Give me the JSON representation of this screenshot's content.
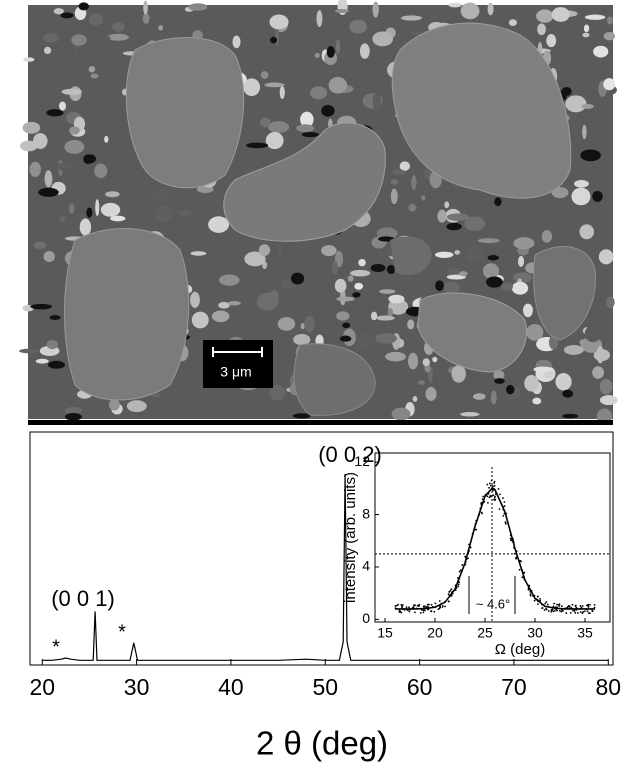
{
  "image": {
    "scale_bar_label": "3 μm"
  },
  "chart_data": [
    {
      "type": "line",
      "xlabel": "2 θ (deg)",
      "x": [
        20,
        21,
        22,
        22.5,
        23,
        24,
        25,
        25.4,
        25.6,
        25.8,
        26,
        28,
        29.3,
        29.7,
        30.1,
        31,
        35,
        40,
        45,
        48,
        50,
        51.5,
        51.9,
        52.1,
        52.3,
        52.7,
        54,
        60,
        70,
        80
      ],
      "series": [
        {
          "color": "#000000",
          "values": [
            2,
            2,
            2.5,
            3,
            2.5,
            2,
            2,
            2,
            23,
            2,
            2,
            2,
            2,
            9.5,
            2,
            2,
            2,
            2,
            2,
            2.5,
            2,
            2,
            10,
            82,
            10,
            2,
            2,
            2,
            2,
            2
          ]
        }
      ],
      "xlim": [
        18.7,
        80.5
      ],
      "ylim": [
        0,
        100
      ],
      "xticks": [
        20,
        30,
        40,
        50,
        60,
        70,
        80
      ],
      "annotations": [
        "(0 0 1)",
        "(0 0 2)",
        "*",
        "*"
      ]
    },
    {
      "type": "scatter-line",
      "xlabel": "Ω  (deg)",
      "ylabel": "intensity  (arb. units)",
      "x": [
        16,
        17,
        18,
        19,
        20,
        21,
        22,
        23,
        24,
        25,
        25.7,
        26,
        27,
        28,
        29,
        30,
        31,
        32,
        33,
        34,
        35,
        36
      ],
      "series": [
        {
          "color": "#000000",
          "values": [
            0.8,
            0.8,
            0.8,
            0.82,
            0.93,
            1.3,
            2.3,
            4.3,
            7.1,
            9.4,
            10,
            9.9,
            8.2,
            5.4,
            3.0,
            1.6,
            1.0,
            0.85,
            0.8,
            0.8,
            0.8,
            0.8
          ]
        }
      ],
      "half_max": 5,
      "center": 25.7,
      "fwhm_edges": [
        23.4,
        28.0
      ],
      "xlim": [
        14,
        37.5
      ],
      "ylim": [
        -0.2,
        12.7
      ],
      "xticks": [
        15,
        20,
        25,
        30,
        35
      ],
      "yticks": [
        0,
        4,
        8,
        12
      ],
      "annotations": [
        "~ 4.6°"
      ]
    }
  ]
}
